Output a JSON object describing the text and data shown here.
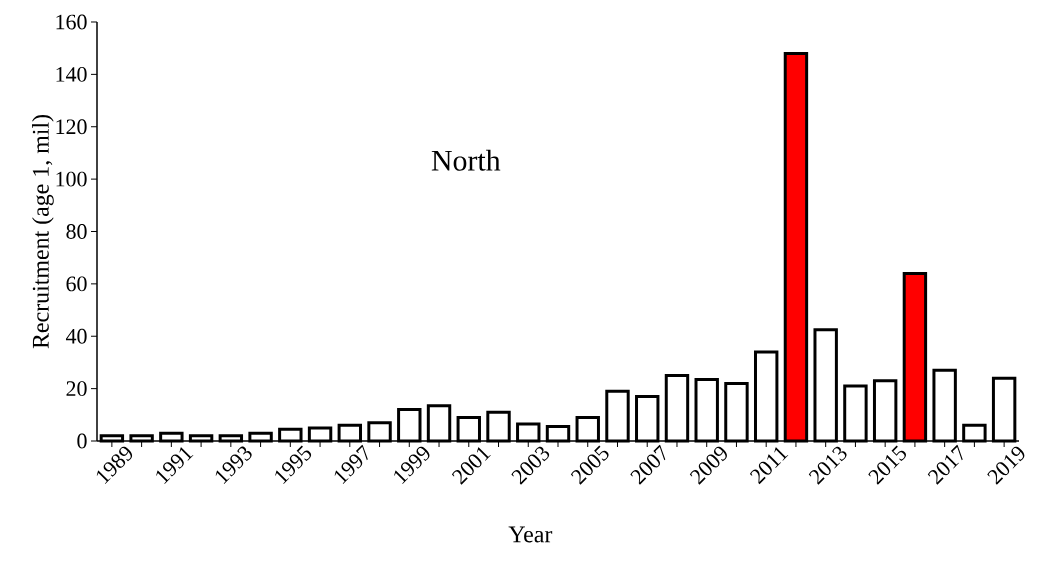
{
  "chart_data": {
    "type": "bar",
    "xlabel": "Year",
    "ylabel": "Recruitment (age 1, mil)",
    "annotations": [
      "North"
    ],
    "categories": [
      "1989",
      null,
      "1991",
      null,
      "1993",
      null,
      "1995",
      null,
      "1997",
      null,
      "1999",
      null,
      "2001",
      null,
      "2003",
      null,
      "2005",
      null,
      "2007",
      null,
      "2009",
      null,
      "2011",
      null,
      "2013",
      null,
      "2015",
      null,
      "2017",
      null,
      "2019"
    ],
    "values": [
      2,
      2,
      3,
      2,
      2,
      3,
      4.5,
      5,
      6,
      7,
      12,
      13.5,
      9,
      11,
      6.5,
      5.5,
      9,
      19,
      17,
      25,
      23.5,
      22,
      34,
      148,
      42.5,
      21,
      23,
      64,
      27,
      6,
      24
    ],
    "colors": [
      "#ffffff",
      "#ffffff",
      "#ffffff",
      "#ffffff",
      "#ffffff",
      "#ffffff",
      "#ffffff",
      "#ffffff",
      "#ffffff",
      "#ffffff",
      "#ffffff",
      "#ffffff",
      "#ffffff",
      "#ffffff",
      "#ffffff",
      "#ffffff",
      "#ffffff",
      "#ffffff",
      "#ffffff",
      "#ffffff",
      "#ffffff",
      "#ffffff",
      "#ffffff",
      "#ff0000",
      "#ffffff",
      "#ffffff",
      "#ffffff",
      "#ff0000",
      "#ffffff",
      "#ffffff",
      "#ffffff"
    ],
    "ylim": [
      0,
      160
    ],
    "yticks": [
      0,
      20,
      40,
      60,
      80,
      100,
      120,
      140,
      160
    ]
  }
}
